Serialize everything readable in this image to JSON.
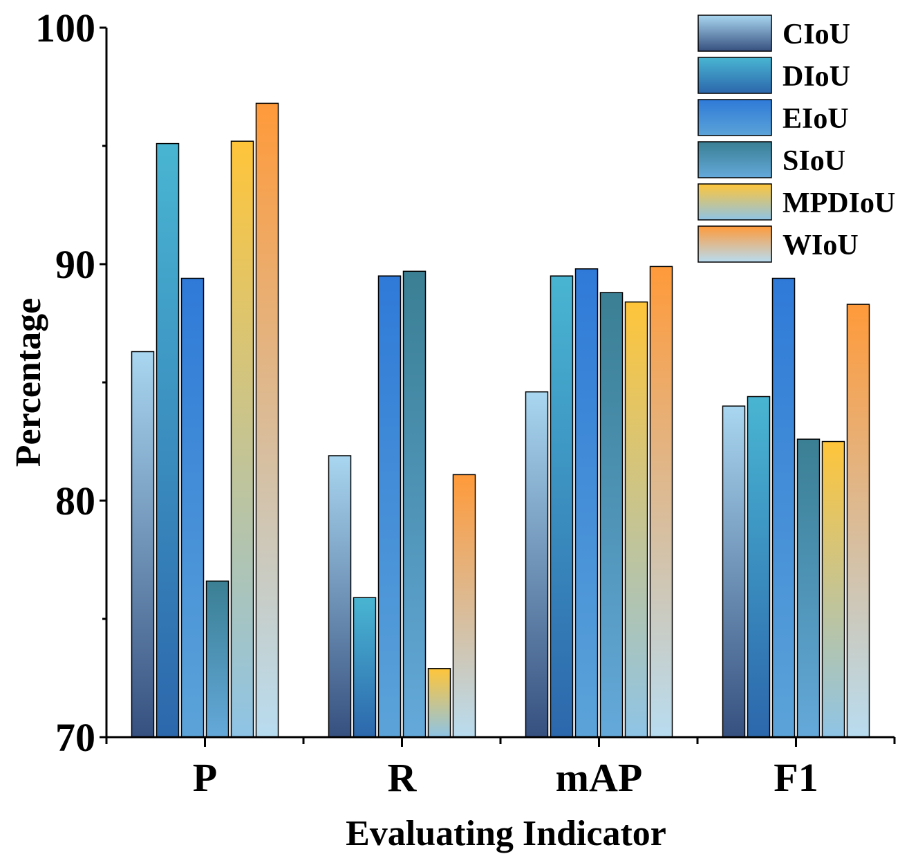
{
  "chart_data": {
    "type": "bar",
    "title": "",
    "xlabel": "Evaluating Indicator",
    "ylabel": "Percentage",
    "ylim": [
      70,
      100
    ],
    "yticks": [
      70,
      80,
      90,
      100
    ],
    "categories": [
      "P",
      "R",
      "mAP",
      "F1"
    ],
    "legend_position": "top-right",
    "series": [
      {
        "name": "CIoU",
        "values": [
          86.3,
          81.9,
          84.6,
          84.0
        ],
        "color_top": "#a9d6f0",
        "color_bottom": "#36507f"
      },
      {
        "name": "DIoU",
        "values": [
          95.1,
          75.9,
          89.5,
          84.4
        ],
        "color_top": "#49b5d2",
        "color_bottom": "#2c67ac"
      },
      {
        "name": "EIoU",
        "values": [
          89.4,
          89.5,
          89.8,
          89.4
        ],
        "color_top": "#2f7ad8",
        "color_bottom": "#5ba3d8"
      },
      {
        "name": "SIoU",
        "values": [
          76.6,
          89.7,
          88.8,
          82.6
        ],
        "color_top": "#3a7f93",
        "color_bottom": "#64a9da"
      },
      {
        "name": "MPDIoU",
        "values": [
          95.2,
          72.9,
          88.4,
          82.5
        ],
        "color_top": "#ffc53a",
        "color_bottom": "#8ec4e6"
      },
      {
        "name": "WIoU",
        "values": [
          96.8,
          81.1,
          89.9,
          88.3
        ],
        "color_top": "#ff9a3a",
        "color_bottom": "#b8dcf0"
      }
    ]
  }
}
